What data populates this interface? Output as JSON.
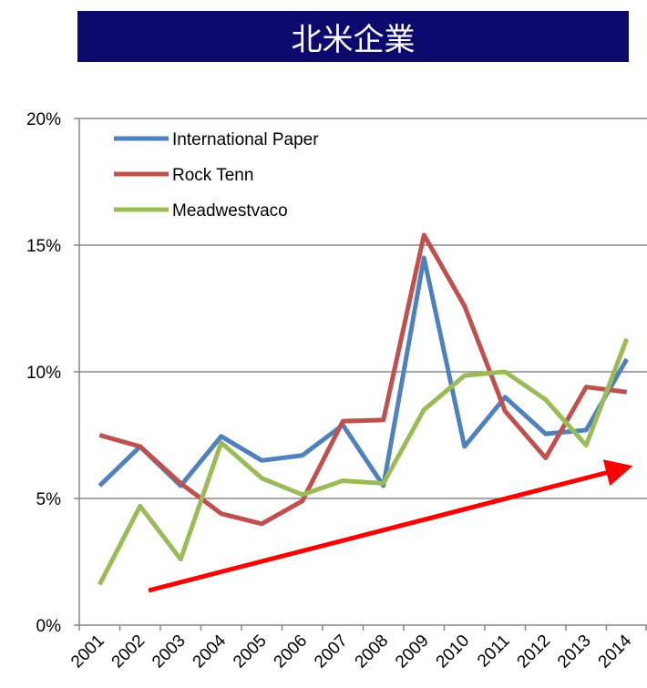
{
  "chart_data": {
    "type": "line",
    "title": "北米企業",
    "categories": [
      "2001",
      "2002",
      "2003",
      "2004",
      "2005",
      "2006",
      "2007",
      "2008",
      "2009",
      "2010",
      "2011",
      "2012",
      "2013",
      "2014"
    ],
    "series": [
      {
        "name": "International Paper",
        "color": "#4f81bd",
        "values": [
          5.5,
          7.05,
          5.5,
          7.45,
          6.5,
          6.7,
          7.9,
          5.5,
          14.5,
          7.05,
          9.0,
          7.55,
          7.7,
          10.5
        ]
      },
      {
        "name": "Rock Tenn",
        "color": "#c0504d",
        "values": [
          7.5,
          7.05,
          5.6,
          4.4,
          4.0,
          4.9,
          8.05,
          8.1,
          15.4,
          12.6,
          8.45,
          6.6,
          9.4,
          9.2
        ]
      },
      {
        "name": "Meadwestvaco",
        "color": "#9bbb59",
        "values": [
          1.6,
          4.7,
          2.6,
          7.2,
          5.8,
          5.15,
          5.7,
          5.6,
          8.5,
          9.85,
          10.0,
          8.9,
          7.1,
          11.3
        ]
      }
    ],
    "ylim": [
      0,
      20
    ],
    "yticks": [
      {
        "value": 0,
        "label": "0%"
      },
      {
        "value": 5,
        "label": "5%"
      },
      {
        "value": 10,
        "label": "10%"
      },
      {
        "value": 15,
        "label": "15%"
      },
      {
        "value": 20,
        "label": "20%"
      }
    ],
    "grid": true,
    "legend": "upper left"
  }
}
